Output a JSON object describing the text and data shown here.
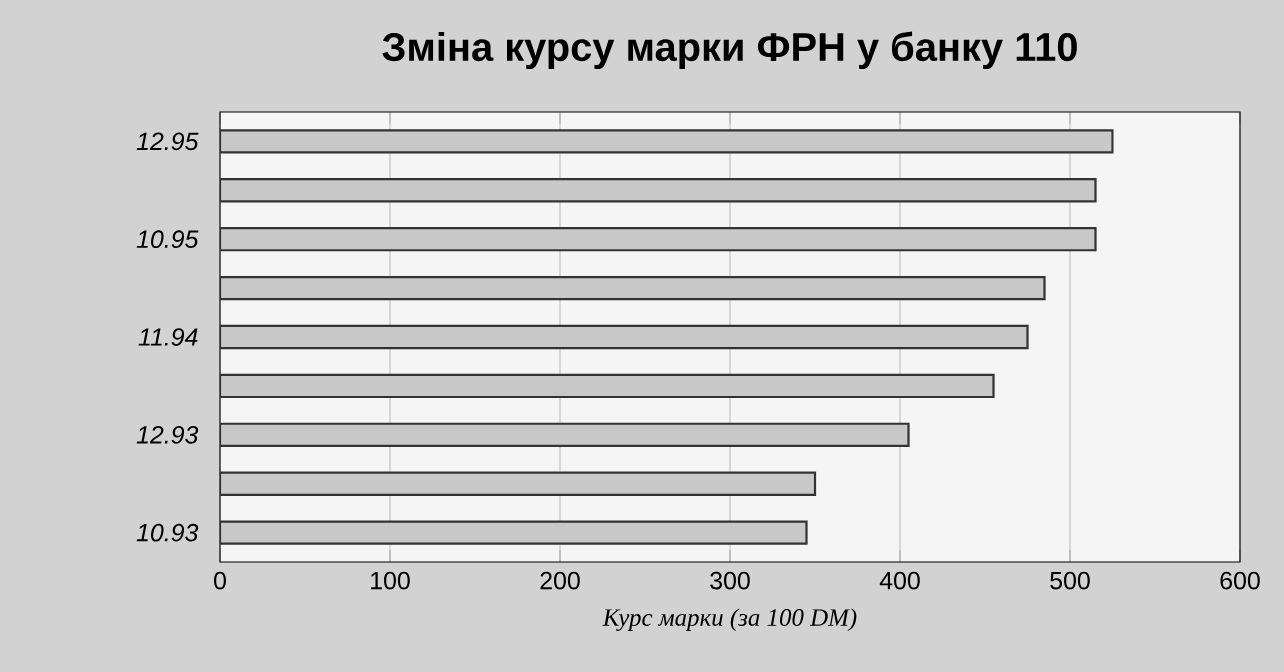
{
  "chart_data": {
    "type": "bar",
    "orientation": "horizontal",
    "title": "Зміна курсу марки ФРН у банку 110",
    "xlabel": "Курс марки (за 100 DM)",
    "categories": [
      "12.95",
      null,
      "10.95",
      null,
      "11.94",
      null,
      "12.93",
      null,
      "10.93"
    ],
    "values": [
      525,
      515,
      515,
      485,
      475,
      455,
      405,
      350,
      345
    ],
    "color": "#c8c8c8",
    "xlim": [
      0,
      600
    ],
    "xticks": [
      0,
      100,
      200,
      300,
      400,
      500,
      600
    ],
    "grid": "x"
  }
}
